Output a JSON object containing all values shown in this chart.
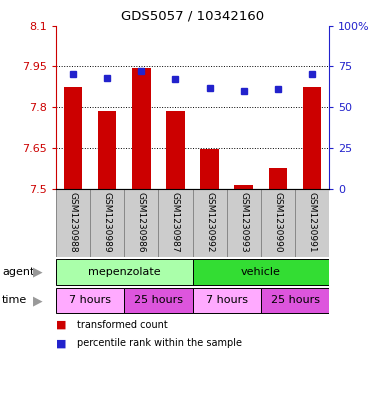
{
  "title": "GDS5057 / 10342160",
  "samples": [
    "GSM1230988",
    "GSM1230989",
    "GSM1230986",
    "GSM1230987",
    "GSM1230992",
    "GSM1230993",
    "GSM1230990",
    "GSM1230991"
  ],
  "bar_values": [
    7.875,
    7.785,
    7.945,
    7.785,
    7.645,
    7.515,
    7.575,
    7.875
  ],
  "percentile_values": [
    70,
    68,
    72,
    67,
    62,
    60,
    61,
    70
  ],
  "ymin": 7.5,
  "ymax": 8.1,
  "yticks": [
    7.5,
    7.65,
    7.8,
    7.95,
    8.1
  ],
  "ytick_labels": [
    "7.5",
    "7.65",
    "7.8",
    "7.95",
    "8.1"
  ],
  "y2min": 0,
  "y2max": 100,
  "y2ticks": [
    0,
    25,
    50,
    75,
    100
  ],
  "y2tick_labels": [
    "0",
    "25",
    "50",
    "75",
    "100%"
  ],
  "bar_color": "#cc0000",
  "dot_color": "#2222cc",
  "left_tick_color": "#cc0000",
  "right_tick_color": "#2222cc",
  "grid_yticks": [
    7.65,
    7.8,
    7.95
  ],
  "agent_row": [
    {
      "label": "mepenzolate",
      "start": 0,
      "end": 4,
      "color": "#aaffaa"
    },
    {
      "label": "vehicle",
      "start": 4,
      "end": 8,
      "color": "#33dd33"
    }
  ],
  "time_row": [
    {
      "label": "7 hours",
      "start": 0,
      "end": 2,
      "color": "#ffaaff"
    },
    {
      "label": "25 hours",
      "start": 2,
      "end": 4,
      "color": "#dd55dd"
    },
    {
      "label": "7 hours",
      "start": 4,
      "end": 6,
      "color": "#ffaaff"
    },
    {
      "label": "25 hours",
      "start": 6,
      "end": 8,
      "color": "#dd55dd"
    }
  ],
  "legend_items": [
    {
      "label": "transformed count",
      "color": "#cc0000"
    },
    {
      "label": "percentile rank within the sample",
      "color": "#2222cc"
    }
  ],
  "agent_label": "agent",
  "time_label": "time",
  "bar_width": 0.55,
  "sample_bg_color": "#cccccc",
  "sample_border_color": "#888888"
}
